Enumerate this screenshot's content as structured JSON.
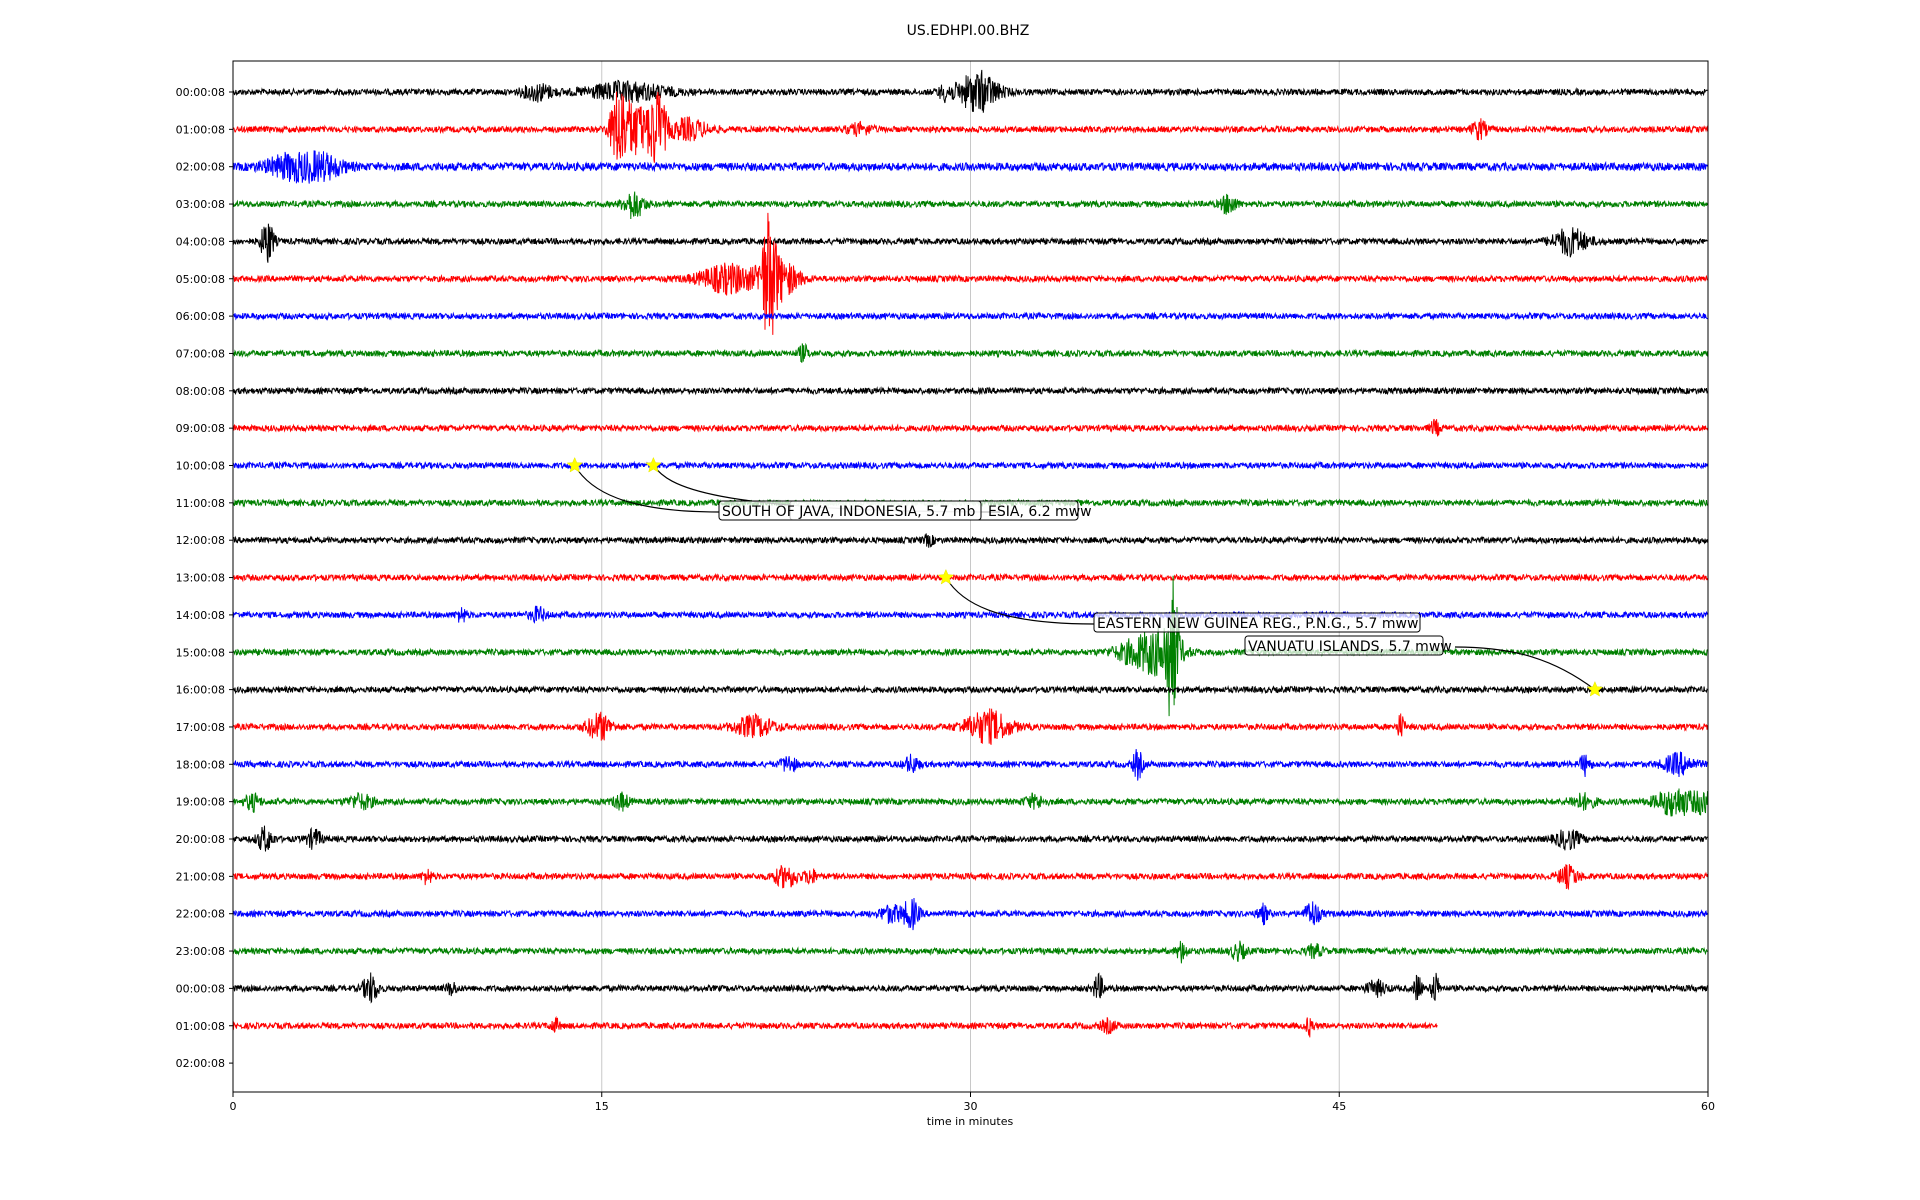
{
  "chart_data": {
    "type": "line",
    "title": "US.EDHPI.00.BHZ",
    "xlabel": "time in minutes",
    "ylabel": "",
    "xlim": [
      0,
      60
    ],
    "x_ticks": [
      0,
      15,
      30,
      45,
      60
    ],
    "x_tick_labels": [
      "0",
      "15",
      "30",
      "45",
      "60"
    ],
    "grid": "vertical gridlines at 15, 30, 45",
    "row_labels": [
      "00:00:08",
      "01:00:08",
      "02:00:08",
      "03:00:08",
      "04:00:08",
      "05:00:08",
      "06:00:08",
      "07:00:08",
      "08:00:08",
      "09:00:08",
      "10:00:08",
      "11:00:08",
      "12:00:08",
      "13:00:08",
      "14:00:08",
      "15:00:08",
      "16:00:08",
      "17:00:08",
      "18:00:08",
      "19:00:08",
      "20:00:08",
      "21:00:08",
      "22:00:08",
      "23:00:08",
      "00:00:08",
      "01:00:08",
      "02:00:08"
    ],
    "trace_colors": [
      "#000000",
      "#ff0000",
      "#0000ff",
      "#008000"
    ],
    "traces": [
      {
        "row": 0,
        "end": 60,
        "noise": 3,
        "bursts": [
          [
            12.4,
            0.6,
            8
          ],
          [
            16,
            1.6,
            9
          ],
          [
            29,
            0.3,
            7
          ],
          [
            30.3,
            0.8,
            20
          ]
        ]
      },
      {
        "row": 1,
        "end": 60,
        "noise": 3,
        "bursts": [
          [
            15.7,
            0.35,
            40
          ],
          [
            16.4,
            0.5,
            25
          ],
          [
            17.25,
            0.35,
            38
          ],
          [
            18.5,
            0.8,
            10
          ],
          [
            25.5,
            0.5,
            5
          ],
          [
            50.7,
            0.3,
            9
          ]
        ]
      },
      {
        "row": 2,
        "end": 60,
        "noise": 4,
        "bursts": [
          [
            2.4,
            1.0,
            12
          ],
          [
            3.7,
            0.8,
            10
          ]
        ]
      },
      {
        "row": 3,
        "end": 60,
        "noise": 3,
        "bursts": [
          [
            16.3,
            0.4,
            14
          ],
          [
            40.5,
            0.3,
            10
          ]
        ]
      },
      {
        "row": 4,
        "end": 60,
        "noise": 3,
        "bursts": [
          [
            1.4,
            0.25,
            22
          ],
          [
            54.4,
            0.7,
            13
          ]
        ]
      },
      {
        "row": 5,
        "end": 60,
        "noise": 3,
        "bursts": [
          [
            20.2,
            1.2,
            14
          ],
          [
            21.8,
            0.3,
            55
          ],
          [
            22.3,
            0.7,
            18
          ]
        ]
      },
      {
        "row": 6,
        "end": 60,
        "noise": 3,
        "bursts": []
      },
      {
        "row": 7,
        "end": 60,
        "noise": 3,
        "bursts": [
          [
            23.2,
            0.2,
            8
          ]
        ]
      },
      {
        "row": 8,
        "end": 60,
        "noise": 3,
        "bursts": []
      },
      {
        "row": 9,
        "end": 60,
        "noise": 3,
        "bursts": [
          [
            48.9,
            0.2,
            7
          ]
        ]
      },
      {
        "row": 10,
        "end": 60,
        "noise": 3,
        "bursts": []
      },
      {
        "row": 11,
        "end": 60,
        "noise": 3,
        "bursts": []
      },
      {
        "row": 12,
        "end": 60,
        "noise": 3,
        "bursts": [
          [
            28.3,
            0.2,
            5
          ]
        ]
      },
      {
        "row": 13,
        "end": 60,
        "noise": 3,
        "bursts": []
      },
      {
        "row": 14,
        "end": 60,
        "noise": 3,
        "bursts": [
          [
            9.3,
            0.2,
            7
          ],
          [
            12.4,
            0.3,
            7
          ]
        ]
      },
      {
        "row": 15,
        "end": 60,
        "noise": 3,
        "bursts": [
          [
            36.8,
            0.9,
            12
          ],
          [
            38.2,
            0.25,
            62
          ],
          [
            37.8,
            0.8,
            18
          ]
        ]
      },
      {
        "row": 16,
        "end": 60,
        "noise": 3,
        "bursts": []
      },
      {
        "row": 17,
        "end": 60,
        "noise": 3,
        "bursts": [
          [
            14.9,
            0.5,
            13
          ],
          [
            21.2,
            0.8,
            10
          ],
          [
            30.7,
            0.9,
            16
          ],
          [
            47.5,
            0.15,
            12
          ]
        ]
      },
      {
        "row": 18,
        "end": 60,
        "noise": 3,
        "bursts": [
          [
            22.6,
            0.3,
            8
          ],
          [
            27.6,
            0.3,
            8
          ],
          [
            36.8,
            0.2,
            14
          ],
          [
            55,
            0.2,
            10
          ],
          [
            58.8,
            0.6,
            10
          ]
        ]
      },
      {
        "row": 19,
        "end": 60,
        "noise": 3,
        "bursts": [
          [
            0.8,
            0.3,
            8
          ],
          [
            5.2,
            0.5,
            7
          ],
          [
            15.8,
            0.3,
            8
          ],
          [
            32.6,
            0.4,
            6
          ],
          [
            54.9,
            0.5,
            7
          ],
          [
            58.7,
            0.8,
            14
          ],
          [
            59.8,
            0.3,
            10
          ]
        ]
      },
      {
        "row": 20,
        "end": 60,
        "noise": 3,
        "bursts": [
          [
            1.3,
            0.3,
            12
          ],
          [
            3.3,
            0.3,
            9
          ],
          [
            54.3,
            0.5,
            9
          ]
        ]
      },
      {
        "row": 21,
        "end": 60,
        "noise": 3,
        "bursts": [
          [
            7.9,
            0.2,
            7
          ],
          [
            22.5,
            0.5,
            10
          ],
          [
            23.5,
            0.2,
            8
          ],
          [
            54.3,
            0.4,
            10
          ]
        ]
      },
      {
        "row": 22,
        "end": 60,
        "noise": 3,
        "bursts": [
          [
            26.8,
            0.5,
            8
          ],
          [
            27.6,
            0.3,
            14
          ],
          [
            41.9,
            0.2,
            9
          ],
          [
            43.9,
            0.3,
            12
          ]
        ]
      },
      {
        "row": 23,
        "end": 60,
        "noise": 3,
        "bursts": [
          [
            38.6,
            0.2,
            10
          ],
          [
            40.9,
            0.3,
            8
          ],
          [
            44,
            0.3,
            6
          ]
        ]
      },
      {
        "row": 24,
        "end": 60,
        "noise": 3,
        "bursts": [
          [
            5.6,
            0.3,
            14
          ],
          [
            8.9,
            0.2,
            6
          ],
          [
            35.2,
            0.2,
            13
          ],
          [
            46.5,
            0.4,
            7
          ],
          [
            48.2,
            0.15,
            14
          ],
          [
            48.9,
            0.15,
            16
          ]
        ]
      },
      {
        "row": 25,
        "end": 49,
        "noise": 3,
        "bursts": [
          [
            13.1,
            0.2,
            6
          ],
          [
            35.6,
            0.3,
            6
          ],
          [
            43.8,
            0.15,
            9
          ]
        ]
      }
    ],
    "events": [
      {
        "label": "SOUTH OF JAVA, INDONESIA, 5.7 mb",
        "row": 10,
        "x": 13.9
      },
      {
        "label": "EASTERN NEW GUINEA REG., P.N.G., 5.7 mww",
        "row": 13,
        "x": 29.0
      },
      {
        "label": "VANUATU ISLANDS, 5.7 mww",
        "row": 16,
        "x": 55.4
      }
    ],
    "events_text_only": [
      {
        "label": "ESIA, 6.2 mww",
        "row": 10,
        "x": 17.1
      }
    ]
  }
}
